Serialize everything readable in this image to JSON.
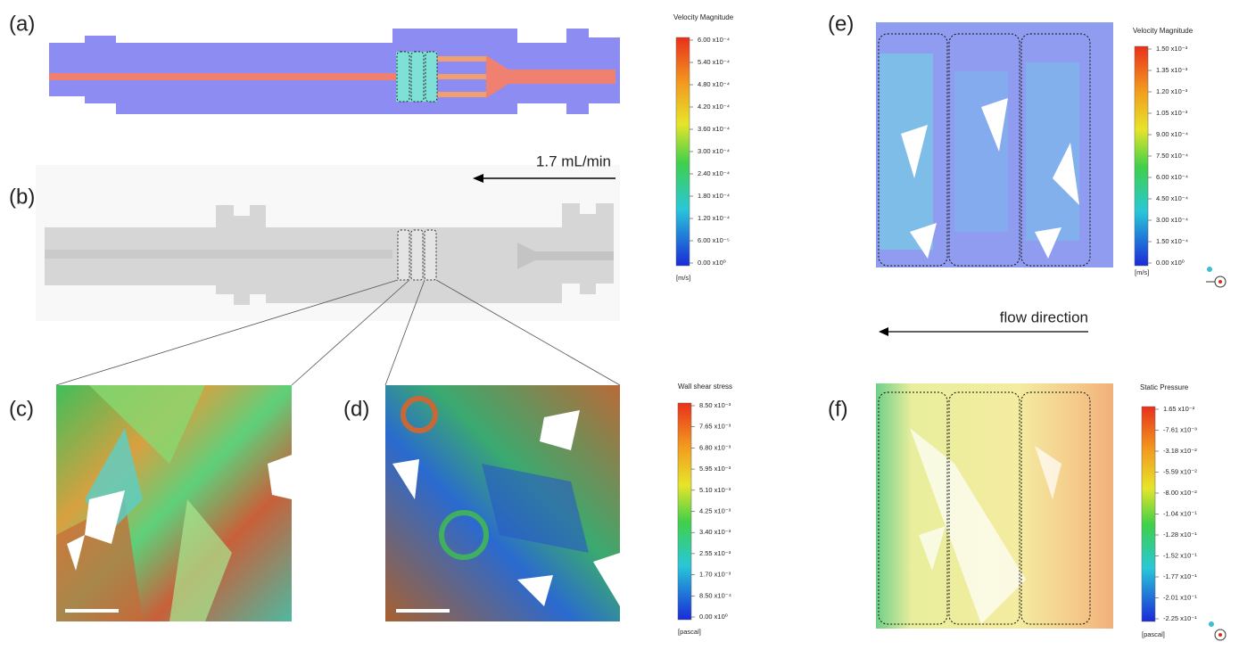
{
  "panels": [
    {
      "label": "(a)"
    },
    {
      "label": "(b)"
    },
    {
      "label": "(c)"
    },
    {
      "label": "(d)"
    },
    {
      "label": "(e)"
    },
    {
      "label": "(f)"
    }
  ],
  "flow_rate": "1.7 mL/min",
  "flow_direction": "flow direction",
  "colorbars": [
    {
      "title": "Velocity Magnitude",
      "unit": "[m/s]",
      "ticks": [
        "6.00 x10⁻⁴",
        "5.40 x10⁻⁴",
        "4.80 x10⁻⁴",
        "4.20 x10⁻⁴",
        "3.60 x10⁻⁴",
        "3.00 x10⁻⁴",
        "2.40 x10⁻⁴",
        "1.80 x10⁻⁴",
        "1.20 x10⁻⁴",
        "6.00 x10⁻⁵",
        "0.00 x10⁰"
      ]
    },
    {
      "title": "Wall shear stress",
      "unit": "[pascal]",
      "ticks": [
        "8.50 x10⁻³",
        "7.65 x10⁻³",
        "6.80 x10⁻³",
        "5.95 x10⁻³",
        "5.10 x10⁻³",
        "4.25 x10⁻³",
        "3.40 x10⁻³",
        "2.55 x10⁻³",
        "1.70 x10⁻³",
        "8.50 x10⁻⁴",
        "0.00 x10⁰"
      ]
    },
    {
      "title": "Velocity Magnitude",
      "unit": "[m/s]",
      "ticks": [
        "1.50 x10⁻³",
        "1.35 x10⁻³",
        "1.20 x10⁻³",
        "1.05 x10⁻³",
        "9.00 x10⁻⁴",
        "7.50 x10⁻⁴",
        "6.00 x10⁻⁴",
        "4.50 x10⁻⁴",
        "3.00 x10⁻⁴",
        "1.50 x10⁻⁴",
        "0.00 x10⁰"
      ]
    },
    {
      "title": "Static Pressure",
      "unit": "[pascal]",
      "ticks": [
        "1.65 x10⁻²",
        "-7.61 x10⁻³",
        "-3.18 x10⁻²",
        "-5.59 x10⁻²",
        "-8.00 x10⁻²",
        "-1.04 x10⁻¹",
        "-1.28 x10⁻¹",
        "-1.52 x10⁻¹",
        "-1.77 x10⁻¹",
        "-2.01 x10⁻¹",
        "-2.25 x10⁻¹"
      ]
    }
  ]
}
